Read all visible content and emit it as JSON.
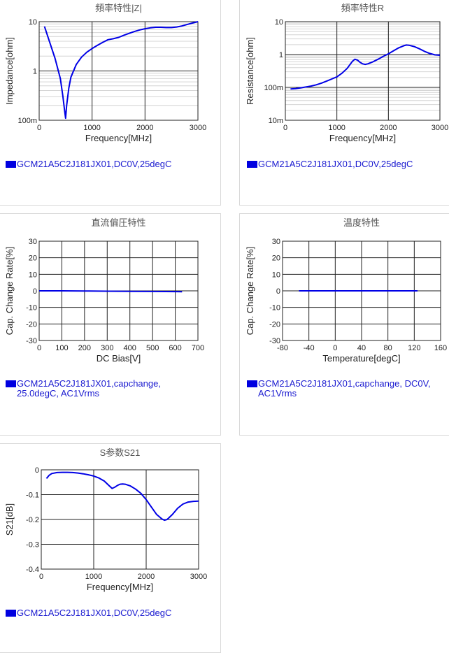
{
  "chart_data": [
    {
      "id": "c1",
      "type": "line",
      "title": "頻率特性|Z|",
      "xlabel": "Frequency[MHz]",
      "ylabel": "Impedance[ohm]",
      "xlim": [
        0,
        3000
      ],
      "ylim": [
        0.1,
        10
      ],
      "yscale": "log",
      "xticks": [
        0,
        1000,
        2000,
        3000
      ],
      "yticks": [
        {
          "v": 0.1,
          "label": "100m"
        },
        {
          "v": 1,
          "label": "1"
        },
        {
          "v": 10,
          "label": "10"
        }
      ],
      "grid": true,
      "legend": "GCM21A5C2J181JX01,DC0V,25degC",
      "series": [
        {
          "x": [
            100,
            200,
            300,
            400,
            450,
            480,
            500,
            520,
            560,
            600,
            700,
            800,
            900,
            1000,
            1100,
            1200,
            1300,
            1400,
            1500,
            1600,
            1700,
            1800,
            1900,
            2000,
            2100,
            2200,
            2300,
            2400,
            2500,
            2600,
            2700,
            2800,
            2900,
            3000
          ],
          "y": [
            8.0,
            3.8,
            1.8,
            0.7,
            0.3,
            0.16,
            0.11,
            0.2,
            0.45,
            0.75,
            1.35,
            1.9,
            2.4,
            2.85,
            3.3,
            3.8,
            4.3,
            4.5,
            4.8,
            5.3,
            5.8,
            6.3,
            6.8,
            7.2,
            7.5,
            7.7,
            7.7,
            7.6,
            7.6,
            7.8,
            8.2,
            8.8,
            9.4,
            10.0
          ]
        }
      ]
    },
    {
      "id": "c2",
      "type": "line",
      "title": "頻率特性R",
      "xlabel": "Frequency[MHz]",
      "ylabel": "Resistance[ohm]",
      "xlim": [
        0,
        3000
      ],
      "ylim": [
        0.01,
        10
      ],
      "yscale": "log",
      "xticks": [
        0,
        1000,
        2000,
        3000
      ],
      "yticks": [
        {
          "v": 0.01,
          "label": "10m"
        },
        {
          "v": 0.1,
          "label": "100m"
        },
        {
          "v": 1,
          "label": "1"
        },
        {
          "v": 10,
          "label": "10"
        }
      ],
      "grid": true,
      "legend": "GCM21A5C2J181JX01,DC0V,25degC",
      "series": [
        {
          "x": [
            100,
            200,
            300,
            400,
            500,
            600,
            700,
            800,
            900,
            1000,
            1100,
            1200,
            1300,
            1350,
            1400,
            1450,
            1500,
            1550,
            1600,
            1700,
            1800,
            1900,
            2000,
            2100,
            2200,
            2300,
            2350,
            2400,
            2500,
            2600,
            2700,
            2800,
            2900,
            3000
          ],
          "y": [
            0.09,
            0.092,
            0.097,
            0.103,
            0.11,
            0.12,
            0.135,
            0.155,
            0.18,
            0.21,
            0.27,
            0.38,
            0.62,
            0.72,
            0.68,
            0.58,
            0.52,
            0.5,
            0.52,
            0.6,
            0.72,
            0.88,
            1.05,
            1.3,
            1.6,
            1.85,
            1.95,
            1.92,
            1.75,
            1.5,
            1.25,
            1.08,
            0.98,
            0.95
          ]
        }
      ]
    },
    {
      "id": "c3",
      "type": "line",
      "title": "直流偏圧特性",
      "xlabel": "DC Bias[V]",
      "ylabel": "Cap. Change Rate[%]",
      "xlim": [
        0,
        700
      ],
      "ylim": [
        -30,
        30
      ],
      "xticks": [
        0,
        100,
        200,
        300,
        400,
        500,
        600,
        700
      ],
      "yticks": [
        -30,
        -20,
        -10,
        0,
        10,
        20,
        30
      ],
      "grid": true,
      "legend": "GCM21A5C2J181JX01,capchange, 25.0degC, AC1Vrms",
      "series": [
        {
          "x": [
            0,
            100,
            200,
            300,
            400,
            500,
            630
          ],
          "y": [
            0,
            0,
            -0.1,
            -0.2,
            -0.3,
            -0.4,
            -0.5
          ]
        }
      ]
    },
    {
      "id": "c4",
      "type": "line",
      "title": "温度特性",
      "xlabel": "Temperature[degC]",
      "ylabel": "Cap. Change Rate[%]",
      "xlim": [
        -80,
        160
      ],
      "ylim": [
        -30,
        30
      ],
      "xticks": [
        -80,
        -40,
        0,
        40,
        80,
        120,
        160
      ],
      "yticks": [
        -30,
        -20,
        -10,
        0,
        10,
        20,
        30
      ],
      "grid": true,
      "legend": "GCM21A5C2J181JX01,capchange, DC0V, AC1Vrms",
      "series": [
        {
          "x": [
            -55,
            -25,
            0,
            25,
            50,
            85,
            125
          ],
          "y": [
            0,
            0,
            0,
            0,
            0,
            0,
            0
          ]
        }
      ]
    },
    {
      "id": "c5",
      "type": "line",
      "title": "S参数S21",
      "xlabel": "Frequency[MHz]",
      "ylabel": "S21[dB]",
      "xlim": [
        0,
        3000
      ],
      "ylim": [
        -0.4,
        0
      ],
      "xticks": [
        0,
        1000,
        2000,
        3000
      ],
      "yticks": [
        -0.4,
        -0.3,
        -0.2,
        -0.1,
        0
      ],
      "ytickLabels": [
        "-0.4",
        "-0.3",
        "-0.2",
        "-0.1",
        "0"
      ],
      "grid": true,
      "legend": "GCM21A5C2J181JX01,DC0V,25degC",
      "series": [
        {
          "x": [
            100,
            150,
            200,
            300,
            400,
            500,
            600,
            700,
            800,
            900,
            1000,
            1100,
            1200,
            1300,
            1350,
            1400,
            1450,
            1500,
            1550,
            1600,
            1700,
            1800,
            1900,
            2000,
            2100,
            2200,
            2300,
            2350,
            2400,
            2500,
            2600,
            2700,
            2800,
            2900,
            3000
          ],
          "y": [
            -0.035,
            -0.022,
            -0.015,
            -0.011,
            -0.01,
            -0.01,
            -0.011,
            -0.013,
            -0.016,
            -0.02,
            -0.025,
            -0.033,
            -0.045,
            -0.065,
            -0.075,
            -0.07,
            -0.063,
            -0.058,
            -0.057,
            -0.058,
            -0.065,
            -0.078,
            -0.095,
            -0.12,
            -0.15,
            -0.18,
            -0.198,
            -0.203,
            -0.2,
            -0.18,
            -0.155,
            -0.138,
            -0.13,
            -0.127,
            -0.126
          ]
        }
      ]
    }
  ]
}
